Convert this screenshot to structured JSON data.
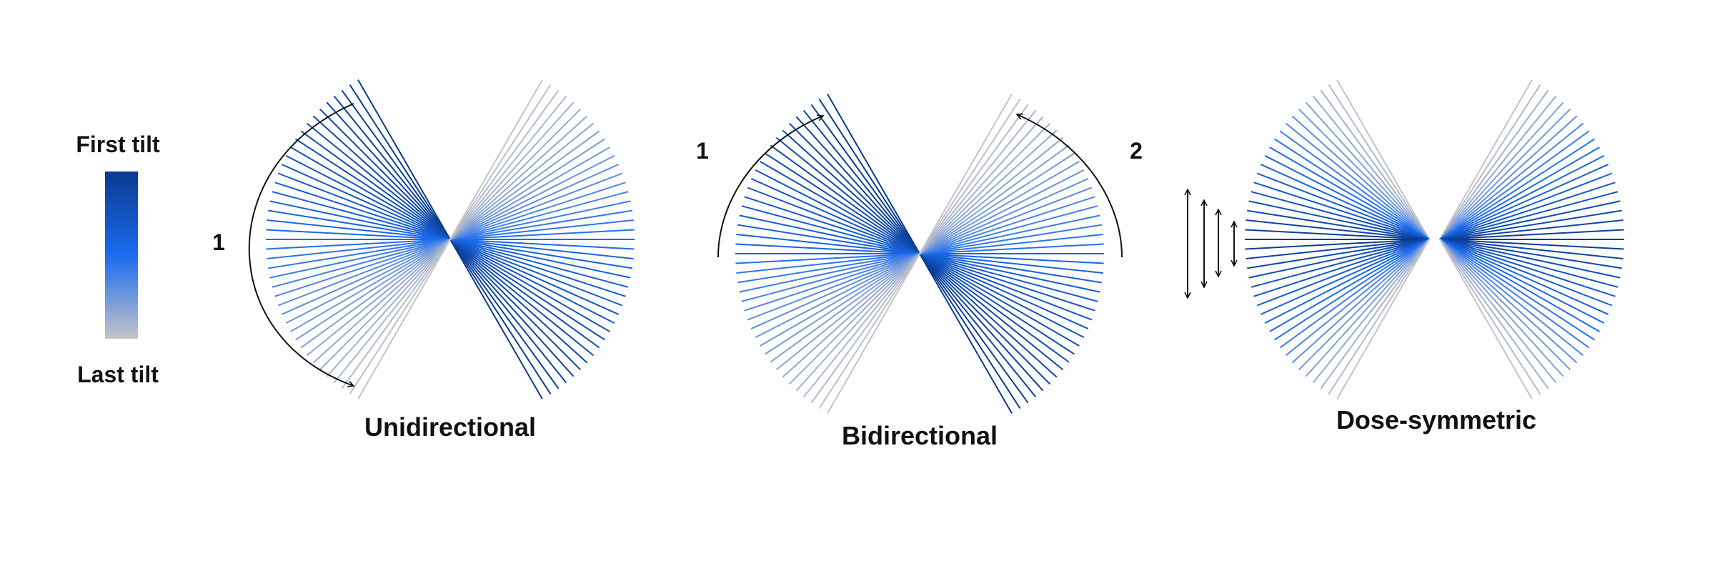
{
  "legend": {
    "first_label": "First tilt",
    "last_label": "Last tilt"
  },
  "colors": {
    "first": "#0a3a8e",
    "middle": "#1a6cf0",
    "last": "#c4c4c8",
    "arrow": "#111111"
  },
  "schemes": [
    {
      "id": "unidirectional",
      "caption": "Unidirectional",
      "sequence_labels": [
        "1"
      ]
    },
    {
      "id": "bidirectional",
      "caption": "Bidirectional",
      "sequence_labels": [
        "1",
        "2"
      ]
    },
    {
      "id": "dose-symmetric",
      "caption": "Dose-symmetric",
      "sequence_labels": []
    }
  ]
}
